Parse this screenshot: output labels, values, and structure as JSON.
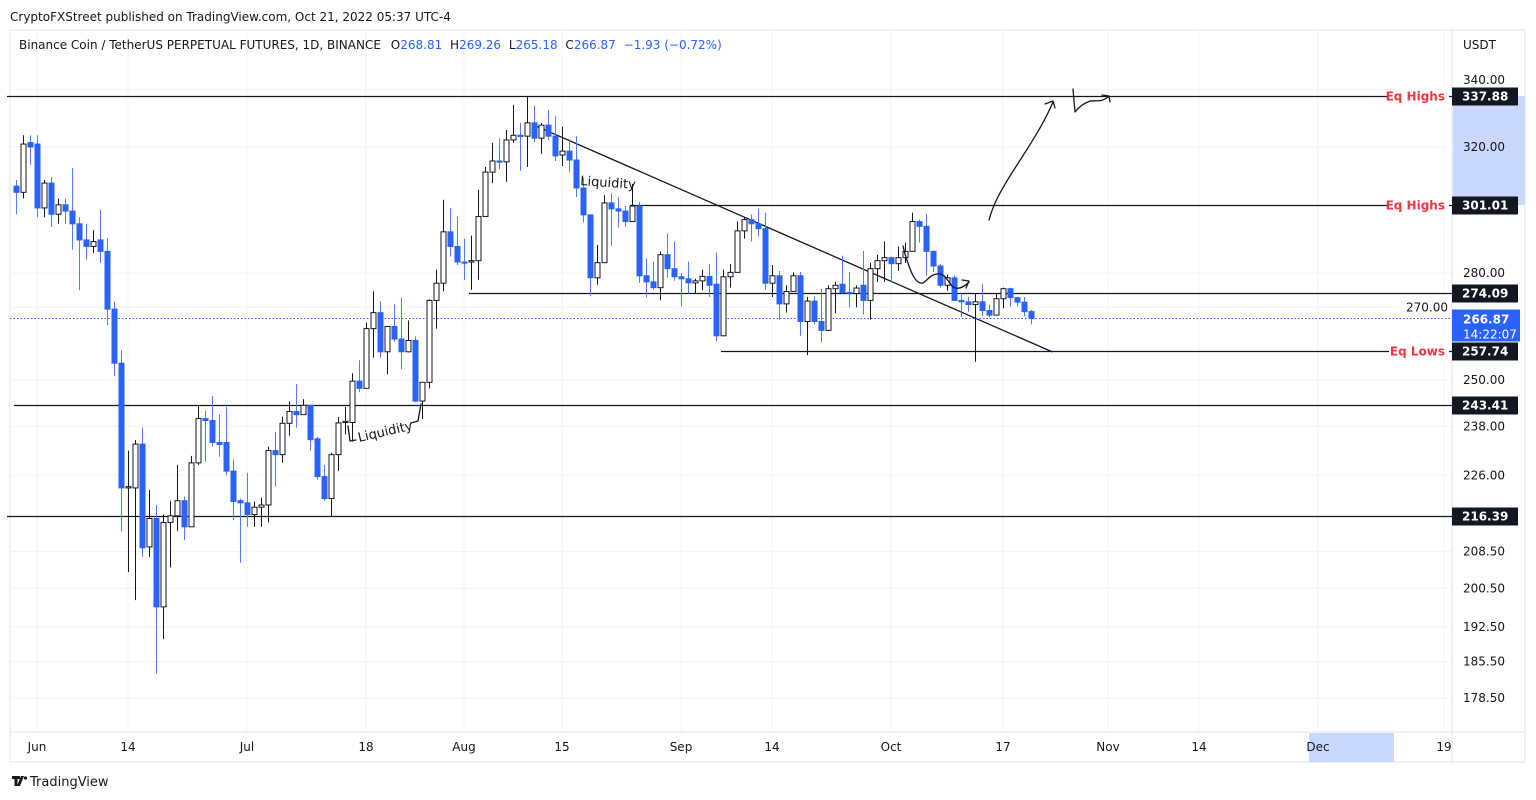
{
  "header": {
    "published": "CryptoFXStreet published on TradingView.com, Oct 21, 2022 05:37 UTC-4"
  },
  "legend": {
    "symbol": "Binance Coin / TetherUS PERPETUAL FUTURES, 1D, BINANCE",
    "o_label": "O",
    "o": "268.81",
    "h_label": "H",
    "h": "269.26",
    "l_label": "L",
    "l": "265.18",
    "c_label": "C",
    "c": "266.87",
    "change": "−1.93 (−0.72%)"
  },
  "price_axis": {
    "currency": "USDT",
    "last_price": "266.87",
    "countdown": "14:22:07"
  },
  "footer": {
    "brand": "TradingView"
  },
  "colors": {
    "bearish": "#2962ff",
    "bullish_fill": "#ffffff",
    "bullish_border": "#131722",
    "level_label": "#f23645",
    "highlight": "#c9d8fc"
  },
  "chart_data": {
    "type": "candlestick",
    "title": "Binance Coin / TetherUS PERPETUAL FUTURES, 1D, BINANCE",
    "xlabel": "",
    "ylabel": "USDT",
    "y_scale": "log",
    "ylim": [
      176,
      342
    ],
    "grid": true,
    "y_ticks": [
      "340.00",
      "320.00",
      "280.00",
      "270.00",
      "250.00",
      "238.00",
      "226.00",
      "208.50",
      "200.50",
      "192.50",
      "185.50",
      "178.50"
    ],
    "x_ticks": [
      {
        "label": "Jun",
        "date": "2022-06-01"
      },
      {
        "label": "14",
        "date": "2022-06-14"
      },
      {
        "label": "Jul",
        "date": "2022-07-01"
      },
      {
        "label": "18",
        "date": "2022-07-18"
      },
      {
        "label": "Aug",
        "date": "2022-08-01"
      },
      {
        "label": "15",
        "date": "2022-08-15"
      },
      {
        "label": "Sep",
        "date": "2022-09-01"
      },
      {
        "label": "14",
        "date": "2022-09-14"
      },
      {
        "label": "Oct",
        "date": "2022-10-01"
      },
      {
        "label": "17",
        "date": "2022-10-17"
      },
      {
        "label": "Nov",
        "date": "2022-11-01"
      },
      {
        "label": "14",
        "date": "2022-11-14"
      },
      {
        "label": "Dec",
        "date": "2022-12-01"
      },
      {
        "label": "19",
        "date": "2022-12-19"
      }
    ],
    "candle_fields": [
      "date",
      "open",
      "high",
      "low",
      "close"
    ],
    "candles": [
      [
        "2022-05-29",
        307,
        309,
        298,
        305
      ],
      [
        "2022-05-30",
        305,
        324,
        303,
        321
      ],
      [
        "2022-05-31",
        321.5,
        324,
        314,
        320
      ],
      [
        "2022-06-01",
        321,
        324,
        297,
        300
      ],
      [
        "2022-06-02",
        300,
        309,
        297,
        308
      ],
      [
        "2022-06-03",
        308,
        310,
        294,
        298
      ],
      [
        "2022-06-04",
        298,
        303,
        295,
        301
      ],
      [
        "2022-06-05",
        301,
        303,
        295,
        299
      ],
      [
        "2022-06-06",
        299,
        313,
        287,
        295
      ],
      [
        "2022-06-07",
        295,
        297,
        275,
        290
      ],
      [
        "2022-06-08",
        290,
        295,
        284,
        288
      ],
      [
        "2022-06-09",
        288,
        293,
        286,
        289.5
      ],
      [
        "2022-06-10",
        290,
        299.5,
        283,
        286.5
      ],
      [
        "2022-06-11",
        286.5,
        290.5,
        265,
        269.5
      ],
      [
        "2022-06-12",
        269.5,
        271.6,
        251,
        254.5
      ],
      [
        "2022-06-13",
        254.5,
        258,
        213,
        223
      ],
      [
        "2022-06-14",
        223,
        232,
        204,
        223.3
      ],
      [
        "2022-06-15",
        223,
        234.6,
        198,
        233.6
      ],
      [
        "2022-06-16",
        233.6,
        237.7,
        207.3,
        209.3
      ],
      [
        "2022-06-17",
        209.5,
        222.5,
        207.3,
        215.9
      ],
      [
        "2022-06-18",
        215.9,
        219,
        183.2,
        196.6
      ],
      [
        "2022-06-19",
        196.6,
        216.8,
        190,
        215
      ],
      [
        "2022-06-20",
        215,
        220,
        205,
        216.5
      ],
      [
        "2022-06-21",
        216.5,
        228.5,
        213,
        220
      ],
      [
        "2022-06-22",
        220,
        221,
        211,
        214
      ],
      [
        "2022-06-23",
        214,
        230.7,
        214,
        229
      ],
      [
        "2022-06-24",
        229,
        243.4,
        228.5,
        240
      ],
      [
        "2022-06-25",
        240,
        242,
        229.3,
        239.5
      ],
      [
        "2022-06-26",
        239.5,
        245.8,
        233,
        234
      ],
      [
        "2022-06-27",
        234,
        241,
        230.5,
        233.5
      ],
      [
        "2022-06-28",
        234,
        243,
        226,
        227
      ],
      [
        "2022-06-29",
        227,
        229.8,
        215.5,
        219.8
      ],
      [
        "2022-06-30",
        220,
        220.5,
        206,
        219.5
      ],
      [
        "2022-07-01",
        219.5,
        226.6,
        214,
        216.8
      ],
      [
        "2022-07-02",
        216.8,
        219.8,
        214,
        218.5
      ],
      [
        "2022-07-03",
        218.5,
        220.7,
        214,
        219
      ],
      [
        "2022-07-04",
        219,
        233,
        215,
        232
      ],
      [
        "2022-07-05",
        232,
        236.6,
        223.3,
        231
      ],
      [
        "2022-07-06",
        231,
        240.5,
        229,
        238.8
      ],
      [
        "2022-07-07",
        238.8,
        244.4,
        235.7,
        241.8
      ],
      [
        "2022-07-08",
        241.8,
        249,
        237.7,
        241
      ],
      [
        "2022-07-09",
        241,
        245,
        241,
        243.4
      ],
      [
        "2022-07-10",
        243.4,
        243.4,
        232,
        234.7
      ],
      [
        "2022-07-11",
        234.9,
        235.4,
        225,
        225.7
      ],
      [
        "2022-07-12",
        225.7,
        228.5,
        220,
        220.5
      ],
      [
        "2022-07-13",
        220.5,
        231.5,
        216.4,
        231
      ],
      [
        "2022-07-14",
        231,
        240.4,
        227,
        238.9
      ],
      [
        "2022-07-15",
        239,
        243,
        236,
        239.3
      ],
      [
        "2022-07-16",
        239,
        251.8,
        234.2,
        249.7
      ],
      [
        "2022-07-17",
        249.7,
        255.3,
        246.8,
        247.8
      ],
      [
        "2022-07-18",
        247.8,
        265.7,
        247.8,
        264
      ],
      [
        "2022-07-19",
        264,
        274.6,
        256,
        268.5
      ],
      [
        "2022-07-20",
        268.5,
        271.8,
        256,
        257.6
      ],
      [
        "2022-07-21",
        257.6,
        264.6,
        251.5,
        264.6
      ],
      [
        "2022-07-22",
        264.6,
        271,
        260.4,
        261.1
      ],
      [
        "2022-07-23",
        261.1,
        272.8,
        252.9,
        257.6
      ],
      [
        "2022-07-24",
        257.6,
        266.3,
        257.4,
        260.7
      ],
      [
        "2022-07-25",
        260.7,
        261.8,
        244.2,
        244.5
      ],
      [
        "2022-07-26",
        244.5,
        249.4,
        239.9,
        249.4
      ],
      [
        "2022-07-27",
        249.4,
        272.3,
        247.8,
        272
      ],
      [
        "2022-07-28",
        272,
        281,
        264,
        277
      ],
      [
        "2022-07-29",
        277,
        302.6,
        274.6,
        292.5
      ],
      [
        "2022-07-30",
        292.5,
        300,
        285,
        288
      ],
      [
        "2022-07-31",
        288,
        297.2,
        282.4,
        283.3
      ],
      [
        "2022-08-01",
        283.3,
        290.4,
        278,
        283.2
      ],
      [
        "2022-08-02",
        283.3,
        291.3,
        275.1,
        283.7
      ],
      [
        "2022-08-03",
        283.7,
        305.8,
        278,
        297.3
      ],
      [
        "2022-08-04",
        297.3,
        313.3,
        297.3,
        311.6
      ],
      [
        "2022-08-05",
        311.6,
        321.4,
        308,
        315.3
      ],
      [
        "2022-08-06",
        315.3,
        323,
        312.6,
        315
      ],
      [
        "2022-08-07",
        315,
        325.8,
        308.4,
        322.4
      ],
      [
        "2022-08-08",
        322.4,
        334.6,
        321.4,
        324
      ],
      [
        "2022-08-09",
        324,
        328.3,
        312,
        323.7
      ],
      [
        "2022-08-10",
        323.7,
        337.4,
        313.3,
        328.3
      ],
      [
        "2022-08-11",
        328.3,
        334.3,
        321.7,
        323
      ],
      [
        "2022-08-12",
        323,
        328.3,
        317.7,
        327.5
      ],
      [
        "2022-08-13",
        327.5,
        332.9,
        322.4,
        323.7
      ],
      [
        "2022-08-14",
        323.7,
        330.6,
        315.3,
        317
      ],
      [
        "2022-08-15",
        317.3,
        327,
        313.6,
        318.6
      ],
      [
        "2022-08-16",
        318.6,
        322.7,
        311.6,
        315.6
      ],
      [
        "2022-08-17",
        315.6,
        323.7,
        303.5,
        306.4
      ],
      [
        "2022-08-18",
        306.4,
        309.7,
        295.4,
        297.8
      ],
      [
        "2022-08-19",
        297.8,
        298,
        273.2,
        278.6
      ],
      [
        "2022-08-20",
        278.6,
        288.5,
        276.6,
        283.1
      ],
      [
        "2022-08-21",
        283.1,
        304.1,
        283.1,
        301.6
      ],
      [
        "2022-08-22",
        301.6,
        304.7,
        288.3,
        299.7
      ],
      [
        "2022-08-23",
        299.7,
        303.5,
        293.8,
        299
      ],
      [
        "2022-08-24",
        299,
        300.6,
        294.1,
        295.7
      ],
      [
        "2022-08-25",
        295.7,
        307.7,
        295.7,
        300.6
      ],
      [
        "2022-08-26",
        300.6,
        301.9,
        277.1,
        279.2
      ],
      [
        "2022-08-27",
        279.2,
        284.3,
        272.8,
        277.4
      ],
      [
        "2022-08-28",
        277.4,
        283.4,
        275.1,
        275.7
      ],
      [
        "2022-08-29",
        275.7,
        286.5,
        272,
        285.5
      ],
      [
        "2022-08-30",
        285.5,
        292,
        278.6,
        281.3
      ],
      [
        "2022-08-31",
        281.3,
        289.5,
        277.7,
        278.9
      ],
      [
        "2022-09-01",
        278.9,
        280,
        270.3,
        278.3
      ],
      [
        "2022-09-02",
        278.3,
        283.4,
        274,
        277.1
      ],
      [
        "2022-09-03",
        277.1,
        278.3,
        274,
        277.7
      ],
      [
        "2022-09-04",
        277.7,
        281,
        275,
        279
      ],
      [
        "2022-09-05",
        279,
        282.7,
        273,
        276.4
      ],
      [
        "2022-09-06",
        276.7,
        286.2,
        260.5,
        262
      ],
      [
        "2022-09-07",
        262,
        281,
        262,
        278.9
      ],
      [
        "2022-09-08",
        278.9,
        282.7,
        275.7,
        280.2
      ],
      [
        "2022-09-09",
        280.2,
        295.7,
        280.2,
        292.8
      ],
      [
        "2022-09-10",
        292.8,
        296.9,
        290.4,
        296.3
      ],
      [
        "2022-09-11",
        296.3,
        297.9,
        289.5,
        295
      ],
      [
        "2022-09-12",
        295,
        299.7,
        291,
        293.5
      ],
      [
        "2022-09-13",
        293.5,
        298.5,
        275.1,
        277
      ],
      [
        "2022-09-14",
        277,
        282.4,
        273,
        279.2
      ],
      [
        "2022-09-15",
        279.2,
        280.6,
        266.6,
        271
      ],
      [
        "2022-09-16",
        271,
        276.4,
        268.5,
        274.6
      ],
      [
        "2022-09-17",
        274.6,
        280.2,
        274.6,
        279.2
      ],
      [
        "2022-09-18",
        279.2,
        280.3,
        262,
        266
      ],
      [
        "2022-09-19",
        266,
        273,
        256.7,
        271.8
      ],
      [
        "2022-09-20",
        271.8,
        273.2,
        265.2,
        266
      ],
      [
        "2022-09-21",
        266,
        275.4,
        260.2,
        263.5
      ],
      [
        "2022-09-22",
        263.5,
        276.4,
        263.5,
        275.4
      ],
      [
        "2022-09-23",
        275.4,
        277.4,
        268.3,
        276.4
      ],
      [
        "2022-09-24",
        276.7,
        285.2,
        274,
        274.3
      ],
      [
        "2022-09-25",
        274.3,
        280.3,
        270,
        274
      ],
      [
        "2022-09-26",
        274,
        276.4,
        270,
        275.6
      ],
      [
        "2022-09-27",
        276.4,
        286.6,
        268,
        272
      ],
      [
        "2022-09-28",
        272,
        283.1,
        266.6,
        281.3
      ],
      [
        "2022-09-29",
        281.3,
        285.5,
        277.4,
        283.7
      ],
      [
        "2022-09-30",
        283.7,
        289.5,
        277.4,
        284.6
      ],
      [
        "2022-10-01",
        284.6,
        284.9,
        277.4,
        282.8
      ],
      [
        "2022-10-02",
        282.8,
        288,
        280.6,
        284.6
      ],
      [
        "2022-10-03",
        284.6,
        289.2,
        283,
        286.5
      ],
      [
        "2022-10-04",
        286.5,
        298.5,
        286.5,
        295.7
      ],
      [
        "2022-10-05",
        295.7,
        296.3,
        289.2,
        294.2
      ],
      [
        "2022-10-06",
        294.2,
        298.2,
        279.2,
        286.5
      ],
      [
        "2022-10-07",
        286.5,
        286.8,
        280.3,
        282.1
      ],
      [
        "2022-10-08",
        282.1,
        282.7,
        275.7,
        276.4
      ],
      [
        "2022-10-09",
        276.4,
        279.5,
        274.8,
        278.6
      ],
      [
        "2022-10-10",
        278.6,
        279.2,
        272,
        272
      ],
      [
        "2022-10-11",
        272,
        274,
        267.2,
        271.6
      ],
      [
        "2022-10-12",
        271.6,
        273,
        268.8,
        270.8
      ],
      [
        "2022-10-13",
        270.8,
        274,
        254.9,
        271.6
      ],
      [
        "2022-10-14",
        271.6,
        276.7,
        267.5,
        269.1
      ],
      [
        "2022-10-15",
        269.1,
        270.8,
        267.2,
        267.8
      ],
      [
        "2022-10-16",
        267.8,
        274,
        267.8,
        272.5
      ],
      [
        "2022-10-17",
        272.5,
        275.7,
        269.7,
        275.4
      ],
      [
        "2022-10-18",
        275.4,
        275.7,
        270.2,
        272.8
      ],
      [
        "2022-10-19",
        272.8,
        273,
        270.2,
        271.5
      ],
      [
        "2022-10-20",
        271.5,
        273,
        267.5,
        268.8
      ],
      [
        "2022-10-21",
        268.81,
        269.26,
        265.18,
        266.87
      ]
    ],
    "levels": [
      {
        "price_label": "337.88",
        "label": "Eq Highs",
        "start": "2022-05-28"
      },
      {
        "price_label": "301.01",
        "label": "Eq Highs",
        "start": "2022-08-25"
      },
      {
        "price_label": "274.09",
        "label": "",
        "start": "2022-08-02"
      },
      {
        "price_label": "257.74",
        "label": "Eq Lows",
        "start": "2022-09-07"
      },
      {
        "price_label": "243.41",
        "label": "",
        "start": "2022-05-29"
      },
      {
        "price_label": "216.39",
        "label": "",
        "start": "2022-05-28"
      }
    ],
    "trendline": [
      [
        "2022-08-11",
        327.5
      ],
      [
        "2022-10-24",
        257.6
      ]
    ],
    "annotations": [
      {
        "text": "Liquidity"
      },
      {
        "text": "Liquidity"
      }
    ]
  }
}
